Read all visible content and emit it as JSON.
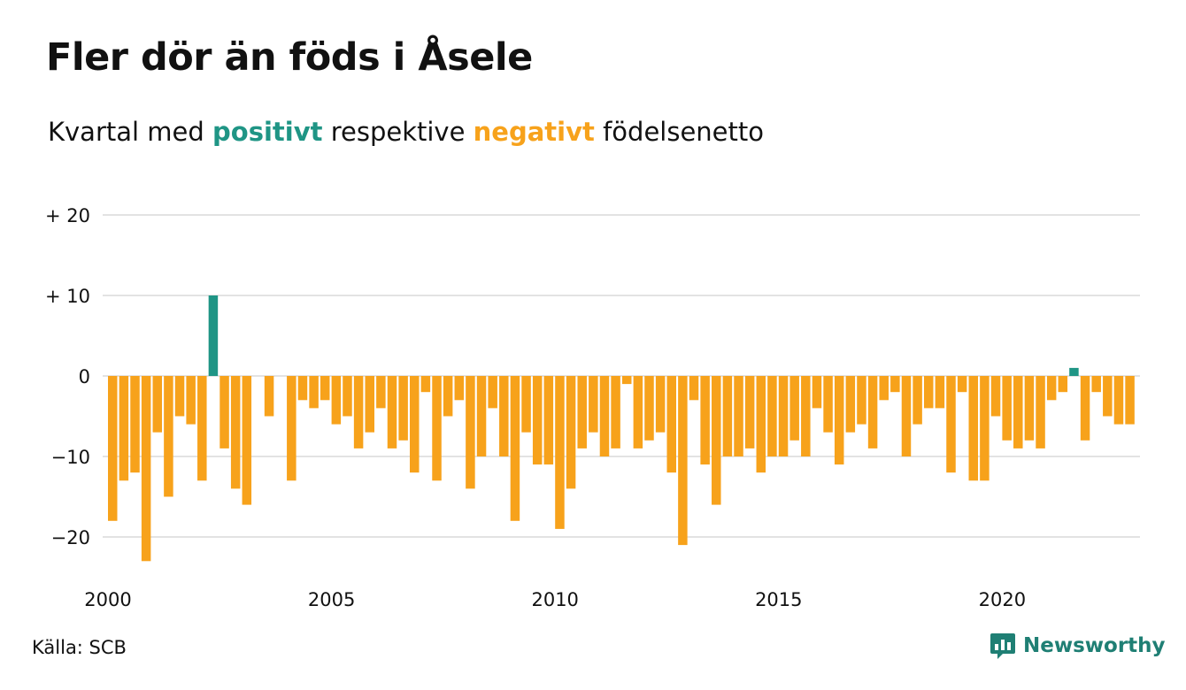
{
  "title": "Fler dör än föds i Åsele",
  "subtitle": {
    "part1": "Kvartal med ",
    "positive": "positivt",
    "part2": " respektive ",
    "negative": "negativt",
    "part3": " födelsenetto"
  },
  "source": "Källa: SCB",
  "brand": "Newsworthy",
  "colors": {
    "positive": "#1f9585",
    "negative": "#f7a21b",
    "grid": "#e3e3e3",
    "text": "#111111"
  },
  "chart_data": {
    "type": "bar",
    "x_start_year": 2000,
    "periods_per_year": 4,
    "ylim": [
      -25,
      22
    ],
    "yticks": [
      {
        "value": 20,
        "label": "+ 20"
      },
      {
        "value": 10,
        "label": "+ 10"
      },
      {
        "value": 0,
        "label": "0"
      },
      {
        "value": -10,
        "label": "−10"
      },
      {
        "value": -20,
        "label": "−20"
      }
    ],
    "xticks": [
      {
        "value": 2000,
        "label": "2000"
      },
      {
        "value": 2005,
        "label": "2005"
      },
      {
        "value": 2010,
        "label": "2010"
      },
      {
        "value": 2015,
        "label": "2015"
      },
      {
        "value": 2020,
        "label": "2020"
      }
    ],
    "values": [
      -18,
      -13,
      -12,
      -23,
      -7,
      -15,
      -5,
      -6,
      -13,
      10,
      -9,
      -14,
      -16,
      0,
      -5,
      0,
      -13,
      -3,
      -4,
      -3,
      -6,
      -5,
      -9,
      -7,
      -4,
      -9,
      -8,
      -12,
      -2,
      -13,
      -5,
      -3,
      -14,
      -10,
      -4,
      -10,
      -18,
      -7,
      -11,
      -11,
      -19,
      -14,
      -9,
      -7,
      -10,
      -9,
      -1,
      -9,
      -8,
      -7,
      -12,
      -21,
      -3,
      -11,
      -16,
      -10,
      -10,
      -9,
      -12,
      -10,
      -10,
      -8,
      -10,
      -4,
      -7,
      -11,
      -7,
      -6,
      -9,
      -3,
      -2,
      -10,
      -6,
      -4,
      -4,
      -12,
      -2,
      -13,
      -13,
      -5,
      -8,
      -9,
      -8,
      -9,
      -3,
      -2,
      1,
      -8,
      -2,
      -5,
      -6,
      -6
    ]
  }
}
